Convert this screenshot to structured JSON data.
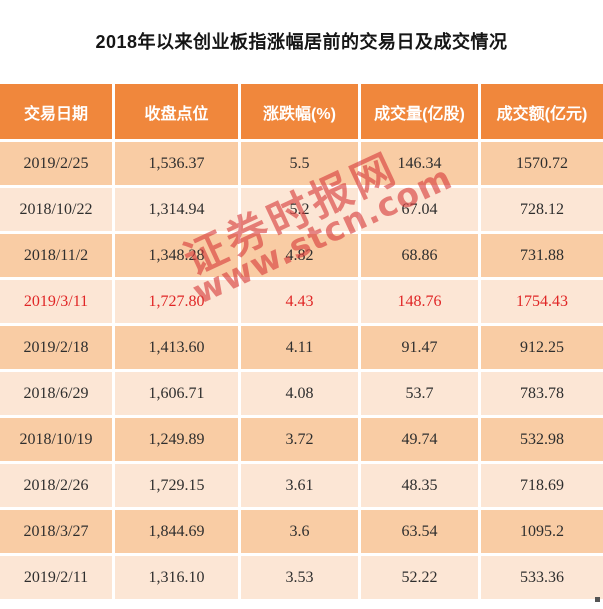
{
  "title": "2018年以来创业板指涨幅居前的交易日及成交情况",
  "watermark": {
    "line1": "证券时报网",
    "line2": "www.stcn.com"
  },
  "colors": {
    "header_bg": "#f0873c",
    "row_dark_bg": "#f9cca4",
    "row_light_bg": "#fce6d5",
    "highlight_text": "#e02626",
    "watermark_red": "#d63a3a",
    "title_text": "#151515"
  },
  "chart_data": {
    "type": "table",
    "title": "2018年以来创业板指涨幅居前的交易日及成交情况",
    "columns": [
      "交易日期",
      "收盘点位",
      "涨跌幅(%)",
      "成交量(亿股)",
      "成交额(亿元)"
    ],
    "highlight_row_index": 3,
    "rows": [
      [
        "2019/2/25",
        "1,536.37",
        "5.5",
        "146.34",
        "1570.72"
      ],
      [
        "2018/10/22",
        "1,314.94",
        "5.2",
        "67.04",
        "728.12"
      ],
      [
        "2018/11/2",
        "1,348.28",
        "4.82",
        "68.86",
        "731.88"
      ],
      [
        "2019/3/11",
        "1,727.80",
        "4.43",
        "148.76",
        "1754.43"
      ],
      [
        "2019/2/18",
        "1,413.60",
        "4.11",
        "91.47",
        "912.25"
      ],
      [
        "2018/6/29",
        "1,606.71",
        "4.08",
        "53.7",
        "783.78"
      ],
      [
        "2018/10/19",
        "1,249.89",
        "3.72",
        "49.74",
        "532.98"
      ],
      [
        "2018/2/26",
        "1,729.15",
        "3.61",
        "48.35",
        "718.69"
      ],
      [
        "2018/3/27",
        "1,844.69",
        "3.6",
        "63.54",
        "1095.2"
      ],
      [
        "2019/2/11",
        "1,316.10",
        "3.53",
        "52.22",
        "533.36"
      ]
    ]
  }
}
